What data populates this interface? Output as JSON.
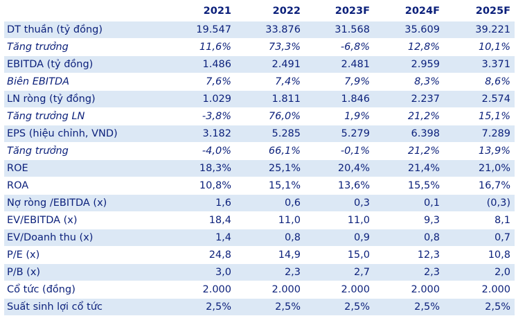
{
  "table": {
    "headers": [
      "",
      "2021",
      "2022",
      "2023F",
      "2024F",
      "2025F"
    ],
    "rows": [
      {
        "label": "DT thuần (tỷ đồng)",
        "values": [
          "19.547",
          "33.876",
          "31.568",
          "35.609",
          "39.221"
        ],
        "italic": false,
        "shaded": true
      },
      {
        "label": "Tăng trưởng",
        "values": [
          "11,6%",
          "73,3%",
          "-6,8%",
          "12,8%",
          "10,1%"
        ],
        "italic": true,
        "shaded": false
      },
      {
        "label": "EBITDA (tỷ đồng)",
        "values": [
          "1.486",
          "2.491",
          "2.481",
          "2.959",
          "3.371"
        ],
        "italic": false,
        "shaded": true
      },
      {
        "label": "Biên EBITDA",
        "values": [
          "7,6%",
          "7,4%",
          "7,9%",
          "8,3%",
          "8,6%"
        ],
        "italic": true,
        "shaded": false
      },
      {
        "label": "LN ròng (tỷ đồng)",
        "values": [
          "1.029",
          "1.811",
          "1.846",
          "2.237",
          "2.574"
        ],
        "italic": false,
        "shaded": true
      },
      {
        "label": "Tăng trưởng LN",
        "values": [
          "-3,8%",
          "76,0%",
          "1,9%",
          "21,2%",
          "15,1%"
        ],
        "italic": true,
        "shaded": false
      },
      {
        "label": "EPS (hiệu chỉnh, VND)",
        "values": [
          "3.182",
          "5.285",
          "5.279",
          "6.398",
          "7.289"
        ],
        "italic": false,
        "shaded": true
      },
      {
        "label": "Tăng trưởng",
        "values": [
          "-4,0%",
          "66,1%",
          "-0,1%",
          "21,2%",
          "13,9%"
        ],
        "italic": true,
        "shaded": false
      },
      {
        "label": "ROE",
        "values": [
          "18,3%",
          "25,1%",
          "20,4%",
          "21,4%",
          "21,0%"
        ],
        "italic": false,
        "shaded": true
      },
      {
        "label": "ROA",
        "values": [
          "10,8%",
          "15,1%",
          "13,6%",
          "15,5%",
          "16,7%"
        ],
        "italic": false,
        "shaded": false
      },
      {
        "label": "Nợ ròng /EBITDA (x)",
        "values": [
          "1,6",
          "0,6",
          "0,3",
          "0,1",
          "(0,3)"
        ],
        "italic": false,
        "shaded": true
      },
      {
        "label": "EV/EBITDA (x)",
        "values": [
          "18,4",
          "11,0",
          "11,0",
          "9,3",
          "8,1"
        ],
        "italic": false,
        "shaded": false
      },
      {
        "label": "EV/Doanh thu (x)",
        "values": [
          "1,4",
          "0,8",
          "0,9",
          "0,8",
          "0,7"
        ],
        "italic": false,
        "shaded": true
      },
      {
        "label": "P/E (x)",
        "values": [
          "24,8",
          "14,9",
          "15,0",
          "12,3",
          "10,8"
        ],
        "italic": false,
        "shaded": false
      },
      {
        "label": "P/B (x)",
        "values": [
          "3,0",
          "2,3",
          "2,7",
          "2,3",
          "2,0"
        ],
        "italic": false,
        "shaded": true
      },
      {
        "label": "Cổ tức (đồng)",
        "values": [
          "2.000",
          "2.000",
          "2.000",
          "2.000",
          "2.000"
        ],
        "italic": false,
        "shaded": false
      },
      {
        "label": "Suất sinh lợi cổ tức",
        "values": [
          "2,5%",
          "2,5%",
          "2,5%",
          "2,5%",
          "2,5%"
        ],
        "italic": false,
        "shaded": true
      }
    ]
  },
  "colors": {
    "text": "#0a1f7a",
    "row_shade": "#dce8f5",
    "background": "#ffffff"
  }
}
